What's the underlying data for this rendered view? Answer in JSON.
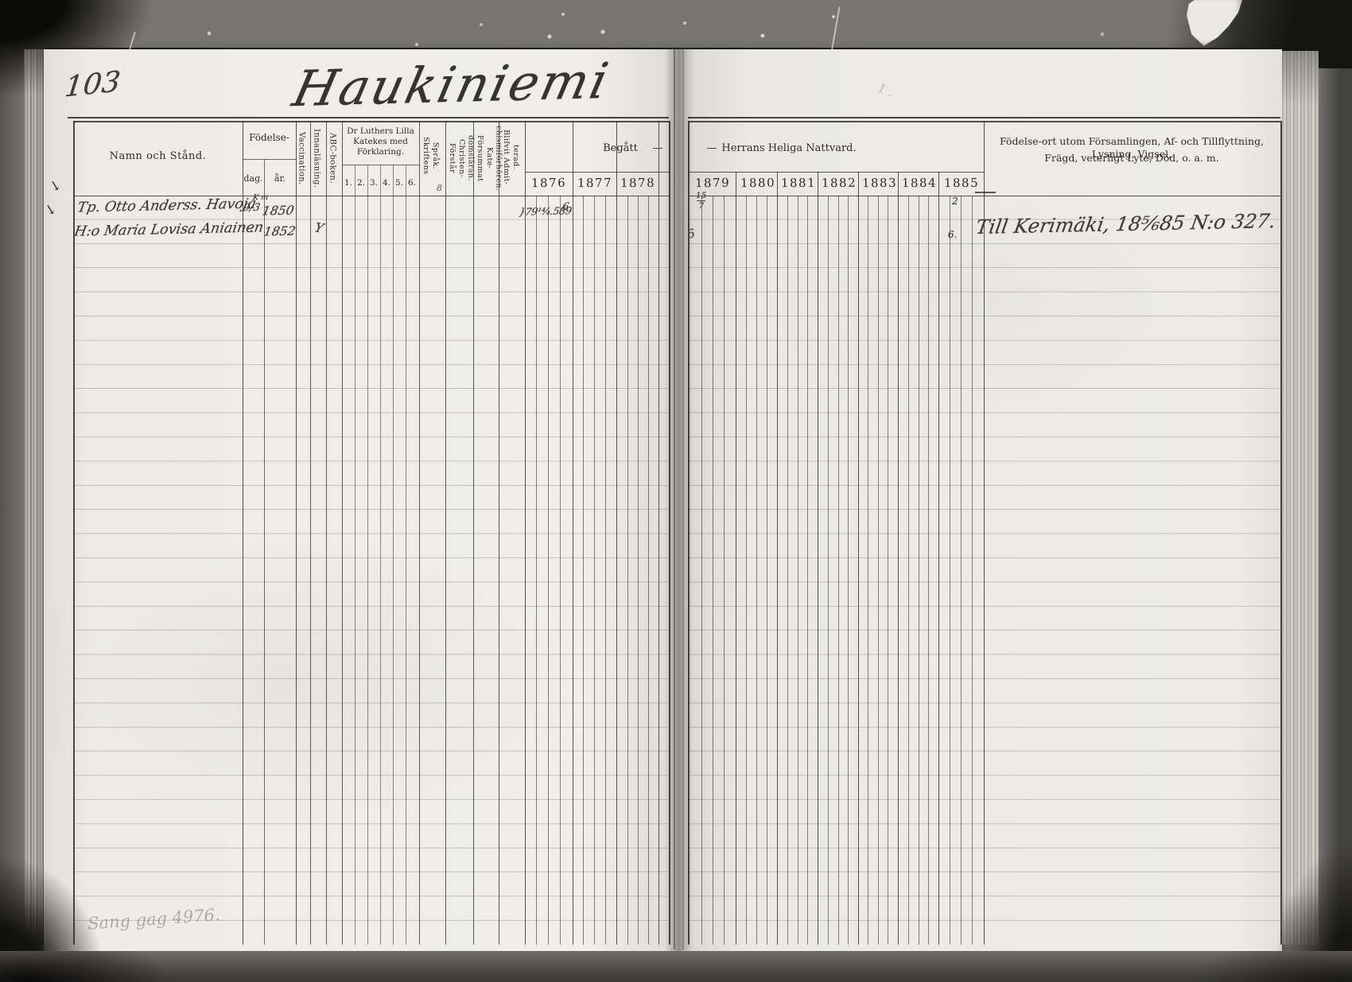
{
  "scan": {
    "page_number": "103",
    "title": "Haukiniemi",
    "pencil_note_bottom": "Sang gag 4976.",
    "pencil_note_top": "1 ,"
  },
  "table": {
    "headers": {
      "name": "Namn och Stånd.",
      "birth_group": "Födelse-",
      "birth_day": "dag.",
      "birth_year": "år.",
      "vaccination": "Vaccination.",
      "reading": "Innanläsning.",
      "abc_book": "ABC-boken.",
      "catechism_group": "Dr Luthers Lilla\nKatekes med\nFörklaring.",
      "catechism_cols": [
        "1.",
        "2.",
        "3.",
        "4.",
        "5.",
        "6."
      ],
      "scripture": "Skriftens\nSpråk.",
      "understands": "Förstår Christen-\ndomsläran.",
      "missed": "Försummat Kate-\nchismiförhören.",
      "admitted": "Blifvit Admit-\nterad.",
      "communion_left_label": "Begått",
      "communion_left_dash": "—",
      "communion_right_dash": "—",
      "communion_right_label": "Herrans Heliga Nattvard.",
      "remarks_line1": "Födelse-ort utom Församlingen, Af- och Tillflyttning, Lysning, Vigsel,",
      "remarks_line2": "Frägd, veterligt Lyte, Död, o. a. m."
    },
    "years_left": [
      "1876",
      "1877",
      "1878"
    ],
    "years_right": [
      "1879",
      "1880",
      "1881",
      "1882",
      "1883",
      "1884",
      "1885"
    ],
    "rows": [
      {
        "margin_mark": "↘",
        "name": "Tp. Otto Anderss. Havoja",
        "birth_day": "9/3",
        "birth_year_note": "K m",
        "birth_year": "1850",
        "admitted_mark": "8",
        "note_1876": "}79¹⁴⁄₄.589",
        "note_1876_extra": "6",
        "note_1879_frac_num": "15",
        "note_1879_frac_den": "7"
      },
      {
        "margin_mark": "↘",
        "name": "H:o Maria Lovisa Aniainen",
        "birth_day": "-",
        "birth_year": "1852",
        "abc_mark": "Y",
        "note_1879": "6",
        "note_1885_top": "2",
        "note_1885": "6.",
        "remark": "Till Kerimäki, 18⁵⁄₆85 N:o 327."
      }
    ]
  }
}
